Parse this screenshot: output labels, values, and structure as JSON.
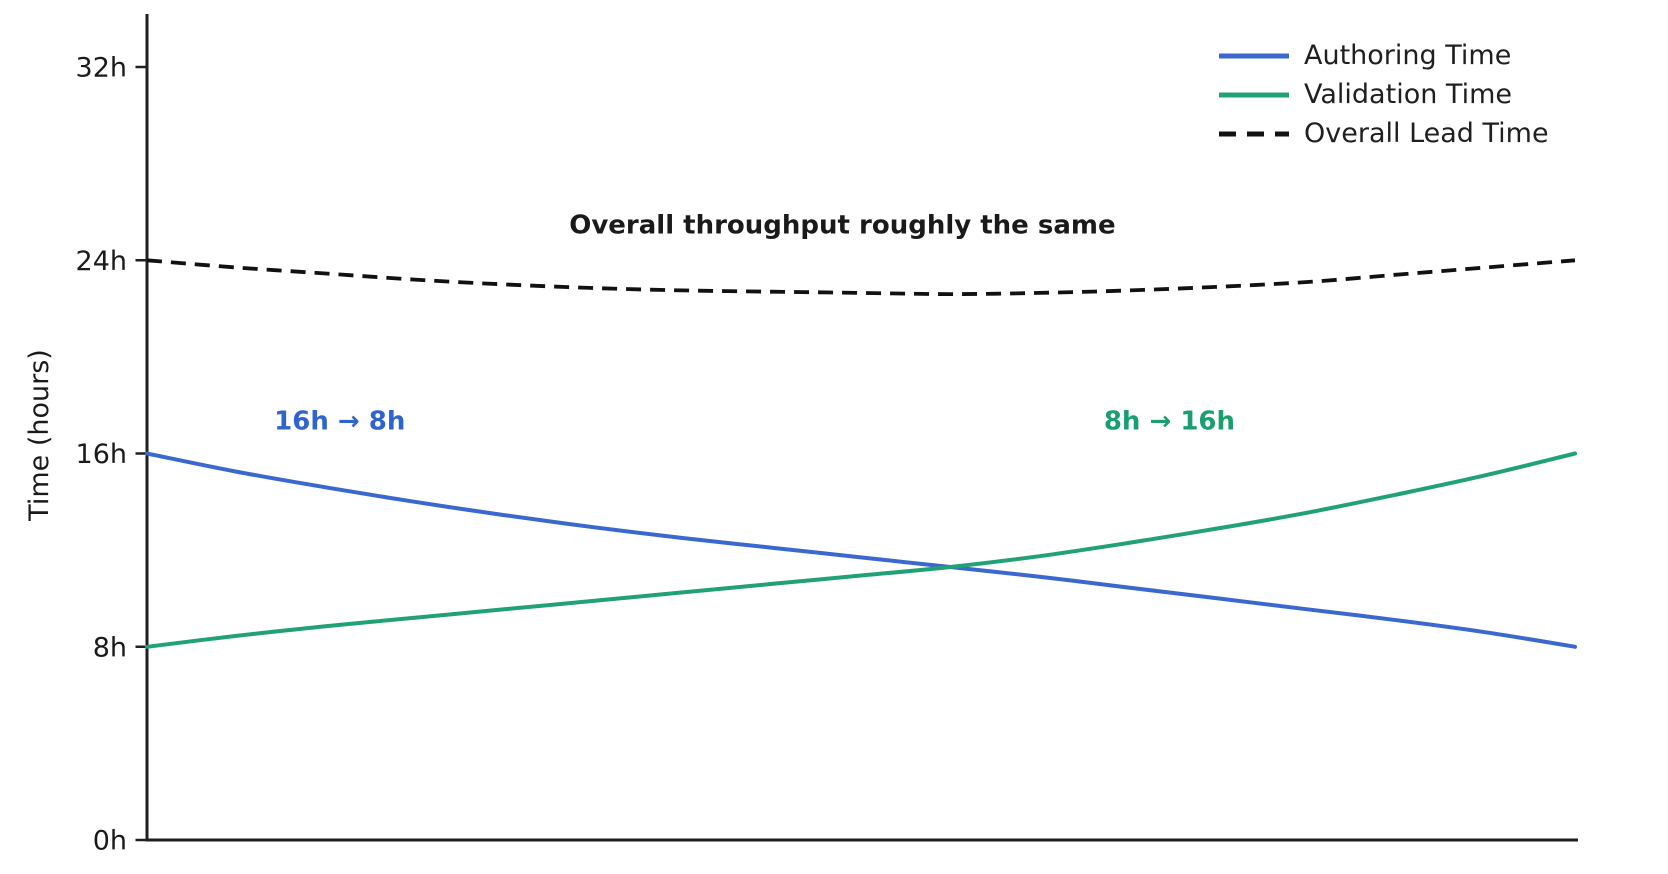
{
  "figure": {
    "ylabel": "Time (hours)",
    "background": "#ffffff",
    "axis_color": "#1f1f1f"
  },
  "legend": {
    "position": "upper right",
    "items": [
      {
        "label": "Authoring Time",
        "color": "#3a68ce",
        "style": "solid"
      },
      {
        "label": "Validation Time",
        "color": "#21a176",
        "style": "solid"
      },
      {
        "label": "Overall Lead Time",
        "color": "#111111",
        "style": "dashed"
      }
    ]
  },
  "chart_data": {
    "type": "line",
    "title": "",
    "xlabel": "",
    "ylabel": "Time (hours)",
    "ylim": [
      0,
      34
    ],
    "xlim": [
      0,
      1
    ],
    "grid": false,
    "x_tick_labels": [],
    "yticks": [
      {
        "value": 0,
        "label": "0h"
      },
      {
        "value": 8,
        "label": "8h"
      },
      {
        "value": 16,
        "label": "16h"
      },
      {
        "value": 24,
        "label": "24h"
      },
      {
        "value": 32,
        "label": "32h"
      }
    ],
    "x": [
      0,
      0.0625,
      0.125,
      0.1875,
      0.25,
      0.3125,
      0.375,
      0.4375,
      0.5,
      0.5625,
      0.625,
      0.6875,
      0.75,
      0.8125,
      0.875,
      0.9375,
      1
    ],
    "series": [
      {
        "name": "Authoring Time",
        "color": "#3a68ce",
        "dashed": false,
        "width": 4,
        "values": [
          16.0,
          15.25,
          14.6,
          14.0,
          13.45,
          12.95,
          12.5,
          12.1,
          11.7,
          11.3,
          10.9,
          10.45,
          10.0,
          9.55,
          9.1,
          8.6,
          8.0
        ]
      },
      {
        "name": "Validation Time",
        "color": "#21a176",
        "dashed": false,
        "width": 4,
        "values": [
          8.0,
          8.45,
          8.85,
          9.2,
          9.55,
          9.9,
          10.25,
          10.6,
          10.95,
          11.3,
          11.75,
          12.3,
          12.9,
          13.55,
          14.3,
          15.1,
          16.0
        ]
      },
      {
        "name": "Overall Lead Time",
        "color": "#111111",
        "dashed": true,
        "width": 3.8,
        "values": [
          24.0,
          23.7,
          23.45,
          23.2,
          23.0,
          22.85,
          22.75,
          22.7,
          22.65,
          22.6,
          22.65,
          22.75,
          22.9,
          23.1,
          23.4,
          23.7,
          24.0
        ]
      }
    ],
    "annotations": [
      {
        "id": "overall-note",
        "text": "Overall throughput roughly the same",
        "t": 0.487,
        "hours": 25.1,
        "color": "#1a1a1a"
      },
      {
        "id": "authoring-note",
        "text": "16h → 8h",
        "t": 0.135,
        "hours": 17.0,
        "color": "#2f63ce"
      },
      {
        "id": "validation-note",
        "text": "8h → 16h",
        "t": 0.716,
        "hours": 17.0,
        "color": "#1b9e6d"
      }
    ]
  }
}
